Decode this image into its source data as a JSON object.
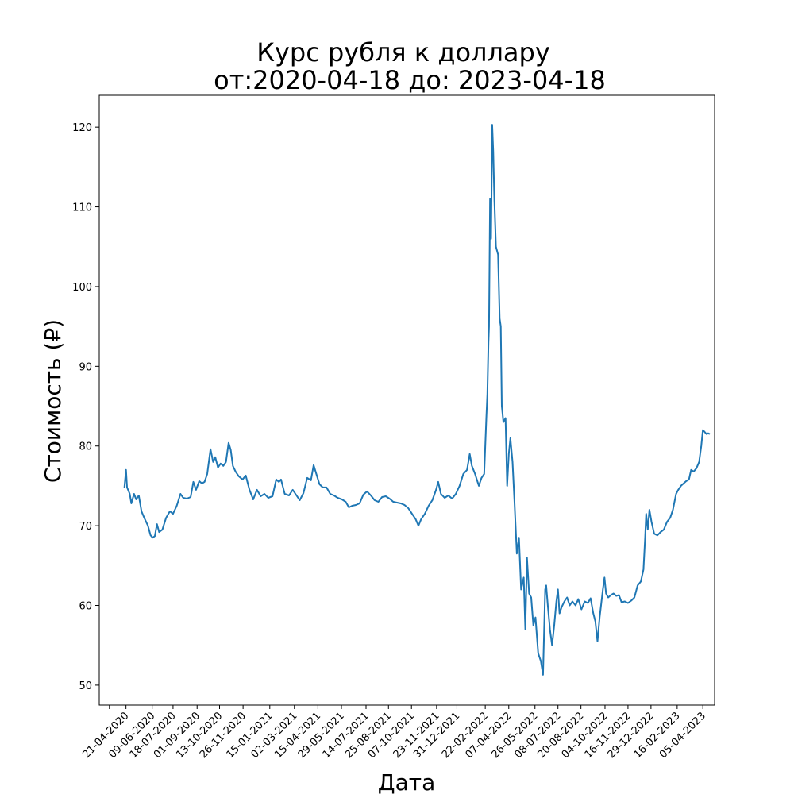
{
  "chart_data": {
    "type": "line",
    "title_line1": "Курс рубля к доллару",
    "title_line2": "от:2020-04-18 до: 2023-04-18",
    "xlabel": "Дата",
    "ylabel": "Стоимость (₽)",
    "ylim": [
      47.5,
      124
    ],
    "y_ticks": [
      50,
      60,
      70,
      80,
      90,
      100,
      110,
      120
    ],
    "x_range": [
      "2020-03-02",
      "2023-04-27"
    ],
    "x_ticks": [
      "21-04-2020",
      "09-06-2020",
      "18-07-2020",
      "01-09-2020",
      "13-10-2020",
      "26-11-2020",
      "15-01-2021",
      "02-03-2021",
      "15-04-2021",
      "29-05-2021",
      "14-07-2021",
      "25-08-2021",
      "07-10-2021",
      "23-11-2021",
      "31-12-2021",
      "22-02-2022",
      "07-04-2022",
      "26-05-2022",
      "08-07-2022",
      "20-08-2022",
      "04-10-2022",
      "16-11-2022",
      "29-12-2022",
      "16-02-2023",
      "05-04-2023"
    ],
    "grid": false,
    "series": [
      {
        "color": "#1f77b4",
        "points": [
          [
            "2020-04-18",
            74.7
          ],
          [
            "2020-04-21",
            77.0
          ],
          [
            "2020-04-23",
            74.8
          ],
          [
            "2020-04-28",
            74.0
          ],
          [
            "2020-05-01",
            72.8
          ],
          [
            "2020-05-06",
            74.0
          ],
          [
            "2020-05-10",
            73.3
          ],
          [
            "2020-05-15",
            73.8
          ],
          [
            "2020-05-20",
            71.8
          ],
          [
            "2020-05-25",
            71.0
          ],
          [
            "2020-06-01",
            70.0
          ],
          [
            "2020-06-06",
            68.8
          ],
          [
            "2020-06-10",
            68.5
          ],
          [
            "2020-06-14",
            68.7
          ],
          [
            "2020-06-18",
            70.2
          ],
          [
            "2020-06-22",
            69.2
          ],
          [
            "2020-06-28",
            69.5
          ],
          [
            "2020-07-05",
            71.0
          ],
          [
            "2020-07-12",
            71.8
          ],
          [
            "2020-07-18",
            71.5
          ],
          [
            "2020-07-25",
            72.5
          ],
          [
            "2020-08-01",
            74.0
          ],
          [
            "2020-08-06",
            73.5
          ],
          [
            "2020-08-13",
            73.4
          ],
          [
            "2020-08-20",
            73.6
          ],
          [
            "2020-08-25",
            75.5
          ],
          [
            "2020-08-30",
            74.5
          ],
          [
            "2020-09-05",
            75.6
          ],
          [
            "2020-09-10",
            75.3
          ],
          [
            "2020-09-15",
            75.5
          ],
          [
            "2020-09-20",
            76.5
          ],
          [
            "2020-09-26",
            79.6
          ],
          [
            "2020-10-01",
            78.0
          ],
          [
            "2020-10-05",
            78.6
          ],
          [
            "2020-10-10",
            77.3
          ],
          [
            "2020-10-15",
            77.8
          ],
          [
            "2020-10-20",
            77.5
          ],
          [
            "2020-10-25",
            78.0
          ],
          [
            "2020-10-30",
            80.4
          ],
          [
            "2020-11-03",
            79.5
          ],
          [
            "2020-11-07",
            77.5
          ],
          [
            "2020-11-12",
            76.8
          ],
          [
            "2020-11-18",
            76.2
          ],
          [
            "2020-11-25",
            75.8
          ],
          [
            "2020-12-01",
            76.3
          ],
          [
            "2020-12-08",
            74.5
          ],
          [
            "2020-12-15",
            73.3
          ],
          [
            "2020-12-22",
            74.5
          ],
          [
            "2020-12-29",
            73.7
          ],
          [
            "2021-01-05",
            74.0
          ],
          [
            "2021-01-12",
            73.5
          ],
          [
            "2021-01-20",
            73.7
          ],
          [
            "2021-01-27",
            75.8
          ],
          [
            "2021-02-01",
            75.5
          ],
          [
            "2021-02-05",
            75.8
          ],
          [
            "2021-02-12",
            74.0
          ],
          [
            "2021-02-20",
            73.8
          ],
          [
            "2021-02-27",
            74.5
          ],
          [
            "2021-03-05",
            73.9
          ],
          [
            "2021-03-12",
            73.2
          ],
          [
            "2021-03-19",
            74.1
          ],
          [
            "2021-03-26",
            76.0
          ],
          [
            "2021-04-02",
            75.7
          ],
          [
            "2021-04-07",
            77.6
          ],
          [
            "2021-04-12",
            76.5
          ],
          [
            "2021-04-18",
            75.2
          ],
          [
            "2021-04-24",
            74.8
          ],
          [
            "2021-05-01",
            74.8
          ],
          [
            "2021-05-08",
            74.0
          ],
          [
            "2021-05-15",
            73.8
          ],
          [
            "2021-05-22",
            73.5
          ],
          [
            "2021-05-30",
            73.3
          ],
          [
            "2021-06-06",
            73.0
          ],
          [
            "2021-06-12",
            72.3
          ],
          [
            "2021-06-18",
            72.5
          ],
          [
            "2021-06-25",
            72.6
          ],
          [
            "2021-07-02",
            72.8
          ],
          [
            "2021-07-09",
            73.9
          ],
          [
            "2021-07-16",
            74.3
          ],
          [
            "2021-07-23",
            73.8
          ],
          [
            "2021-07-30",
            73.2
          ],
          [
            "2021-08-06",
            73.0
          ],
          [
            "2021-08-13",
            73.6
          ],
          [
            "2021-08-20",
            73.7
          ],
          [
            "2021-08-27",
            73.4
          ],
          [
            "2021-09-03",
            73.0
          ],
          [
            "2021-09-10",
            72.9
          ],
          [
            "2021-09-17",
            72.8
          ],
          [
            "2021-09-24",
            72.6
          ],
          [
            "2021-10-01",
            72.2
          ],
          [
            "2021-10-08",
            71.5
          ],
          [
            "2021-10-15",
            70.8
          ],
          [
            "2021-10-20",
            70.0
          ],
          [
            "2021-10-25",
            70.8
          ],
          [
            "2021-11-01",
            71.5
          ],
          [
            "2021-11-08",
            72.5
          ],
          [
            "2021-11-15",
            73.2
          ],
          [
            "2021-11-22",
            74.5
          ],
          [
            "2021-11-26",
            75.5
          ],
          [
            "2021-12-01",
            74.0
          ],
          [
            "2021-12-08",
            73.5
          ],
          [
            "2021-12-15",
            73.8
          ],
          [
            "2021-12-22",
            73.4
          ],
          [
            "2021-12-29",
            74.0
          ],
          [
            "2022-01-05",
            75.0
          ],
          [
            "2022-01-12",
            76.5
          ],
          [
            "2022-01-19",
            77.0
          ],
          [
            "2022-01-24",
            79.0
          ],
          [
            "2022-01-28",
            77.5
          ],
          [
            "2022-02-03",
            76.5
          ],
          [
            "2022-02-10",
            75.0
          ],
          [
            "2022-02-15",
            76.0
          ],
          [
            "2022-02-20",
            76.5
          ],
          [
            "2022-02-24",
            83.5
          ],
          [
            "2022-02-26",
            86.5
          ],
          [
            "2022-02-28",
            93.0
          ],
          [
            "2022-03-01",
            95.0
          ],
          [
            "2022-03-03",
            111.0
          ],
          [
            "2022-03-05",
            106.0
          ],
          [
            "2022-03-07",
            120.3
          ],
          [
            "2022-03-09",
            117.0
          ],
          [
            "2022-03-11",
            111.0
          ],
          [
            "2022-03-14",
            105.0
          ],
          [
            "2022-03-16",
            104.5
          ],
          [
            "2022-03-18",
            104.0
          ],
          [
            "2022-03-21",
            96.0
          ],
          [
            "2022-03-23",
            95.0
          ],
          [
            "2022-03-25",
            85.0
          ],
          [
            "2022-03-28",
            83.0
          ],
          [
            "2022-04-01",
            83.5
          ],
          [
            "2022-04-04",
            75.0
          ],
          [
            "2022-04-07",
            79.0
          ],
          [
            "2022-04-10",
            81.0
          ],
          [
            "2022-04-14",
            78.0
          ],
          [
            "2022-04-18",
            72.5
          ],
          [
            "2022-04-22",
            66.5
          ],
          [
            "2022-04-26",
            68.5
          ],
          [
            "2022-04-30",
            62.0
          ],
          [
            "2022-05-05",
            63.5
          ],
          [
            "2022-05-08",
            57.0
          ],
          [
            "2022-05-11",
            66.0
          ],
          [
            "2022-05-15",
            61.5
          ],
          [
            "2022-05-19",
            61.0
          ],
          [
            "2022-05-23",
            57.5
          ],
          [
            "2022-05-27",
            58.5
          ],
          [
            "2022-06-01",
            54.0
          ],
          [
            "2022-06-06",
            53.0
          ],
          [
            "2022-06-10",
            51.3
          ],
          [
            "2022-06-14",
            62.0
          ],
          [
            "2022-06-16",
            62.5
          ],
          [
            "2022-06-19",
            60.0
          ],
          [
            "2022-06-23",
            57.0
          ],
          [
            "2022-06-27",
            55.0
          ],
          [
            "2022-07-01",
            57.5
          ],
          [
            "2022-07-05",
            60.5
          ],
          [
            "2022-07-08",
            62.0
          ],
          [
            "2022-07-11",
            59.0
          ],
          [
            "2022-07-15",
            59.8
          ],
          [
            "2022-07-20",
            60.5
          ],
          [
            "2022-07-25",
            61.0
          ],
          [
            "2022-07-30",
            60.0
          ],
          [
            "2022-08-04",
            60.5
          ],
          [
            "2022-08-10",
            60.0
          ],
          [
            "2022-08-15",
            60.8
          ],
          [
            "2022-08-21",
            59.5
          ],
          [
            "2022-08-27",
            60.5
          ],
          [
            "2022-09-02",
            60.3
          ],
          [
            "2022-09-07",
            60.9
          ],
          [
            "2022-09-12",
            59.0
          ],
          [
            "2022-09-16",
            58.0
          ],
          [
            "2022-09-20",
            55.5
          ],
          [
            "2022-09-24",
            58.5
          ],
          [
            "2022-09-30",
            62.0
          ],
          [
            "2022-10-03",
            63.5
          ],
          [
            "2022-10-06",
            61.5
          ],
          [
            "2022-10-10",
            61.0
          ],
          [
            "2022-10-15",
            61.3
          ],
          [
            "2022-10-20",
            61.5
          ],
          [
            "2022-10-25",
            61.2
          ],
          [
            "2022-10-30",
            61.3
          ],
          [
            "2022-11-04",
            60.4
          ],
          [
            "2022-11-10",
            60.5
          ],
          [
            "2022-11-16",
            60.3
          ],
          [
            "2022-11-22",
            60.6
          ],
          [
            "2022-11-28",
            61.0
          ],
          [
            "2022-12-04",
            62.5
          ],
          [
            "2022-12-10",
            63.0
          ],
          [
            "2022-12-15",
            64.5
          ],
          [
            "2022-12-18",
            68.5
          ],
          [
            "2022-12-20",
            71.5
          ],
          [
            "2022-12-23",
            69.5
          ],
          [
            "2022-12-26",
            72.0
          ],
          [
            "2022-12-30",
            70.5
          ],
          [
            "2023-01-04",
            69.0
          ],
          [
            "2023-01-10",
            68.8
          ],
          [
            "2023-01-16",
            69.2
          ],
          [
            "2023-01-22",
            69.5
          ],
          [
            "2023-01-28",
            70.5
          ],
          [
            "2023-02-03",
            71.0
          ],
          [
            "2023-02-08",
            72.0
          ],
          [
            "2023-02-14",
            74.0
          ],
          [
            "2023-02-18",
            74.5
          ],
          [
            "2023-02-23",
            75.0
          ],
          [
            "2023-02-28",
            75.3
          ],
          [
            "2023-03-05",
            75.6
          ],
          [
            "2023-03-10",
            75.8
          ],
          [
            "2023-03-14",
            77.0
          ],
          [
            "2023-03-19",
            76.8
          ],
          [
            "2023-03-24",
            77.2
          ],
          [
            "2023-03-29",
            78.0
          ],
          [
            "2023-04-02",
            80.0
          ],
          [
            "2023-04-05",
            82.0
          ],
          [
            "2023-04-08",
            81.8
          ],
          [
            "2023-04-12",
            81.5
          ],
          [
            "2023-04-15",
            81.6
          ],
          [
            "2023-04-18",
            81.5
          ]
        ]
      }
    ]
  }
}
